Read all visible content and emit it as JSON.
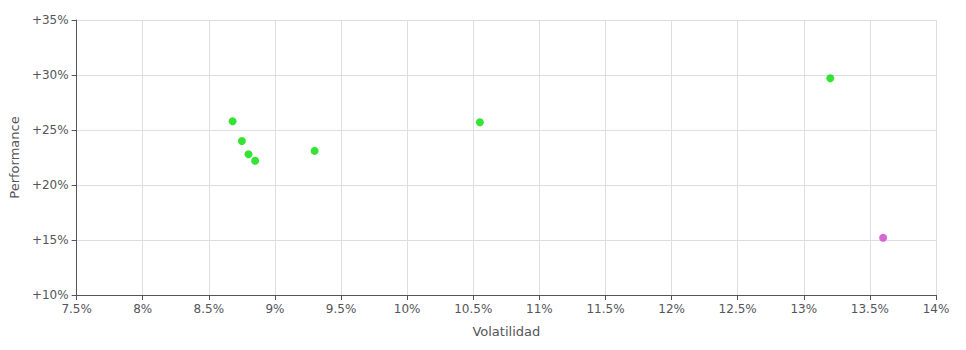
{
  "chart_data": {
    "type": "scatter",
    "xlabel": "Volatilidad",
    "ylabel": "Performance",
    "xlim": [
      0.075,
      0.14
    ],
    "ylim": [
      0.1,
      0.35
    ],
    "xticks": [
      {
        "value": 0.075,
        "label": "7.5%"
      },
      {
        "value": 0.08,
        "label": "8%"
      },
      {
        "value": 0.085,
        "label": "8.5%"
      },
      {
        "value": 0.09,
        "label": "9%"
      },
      {
        "value": 0.095,
        "label": "9.5%"
      },
      {
        "value": 0.1,
        "label": "10%"
      },
      {
        "value": 0.105,
        "label": "10.5%"
      },
      {
        "value": 0.11,
        "label": "11%"
      },
      {
        "value": 0.115,
        "label": "11.5%"
      },
      {
        "value": 0.12,
        "label": "12%"
      },
      {
        "value": 0.125,
        "label": "12.5%"
      },
      {
        "value": 0.13,
        "label": "13%"
      },
      {
        "value": 0.135,
        "label": "13.5%"
      },
      {
        "value": 0.14,
        "label": "14%"
      }
    ],
    "yticks": [
      {
        "value": 0.1,
        "label": "+10%"
      },
      {
        "value": 0.15,
        "label": "+15%"
      },
      {
        "value": 0.2,
        "label": "+20%"
      },
      {
        "value": 0.25,
        "label": "+25%"
      },
      {
        "value": 0.3,
        "label": "+30%"
      },
      {
        "value": 0.35,
        "label": "+35%"
      }
    ],
    "grid": true,
    "series": [
      {
        "color": "#00dd00",
        "values": [
          [
            0.0868,
            0.258
          ],
          [
            0.0875,
            0.24
          ],
          [
            0.088,
            0.228
          ],
          [
            0.0885,
            0.222
          ],
          [
            0.093,
            0.231
          ],
          [
            0.1055,
            0.257
          ],
          [
            0.132,
            0.297
          ]
        ]
      },
      {
        "color": "#cc44cc",
        "values": [
          [
            0.136,
            0.152
          ]
        ]
      }
    ]
  }
}
